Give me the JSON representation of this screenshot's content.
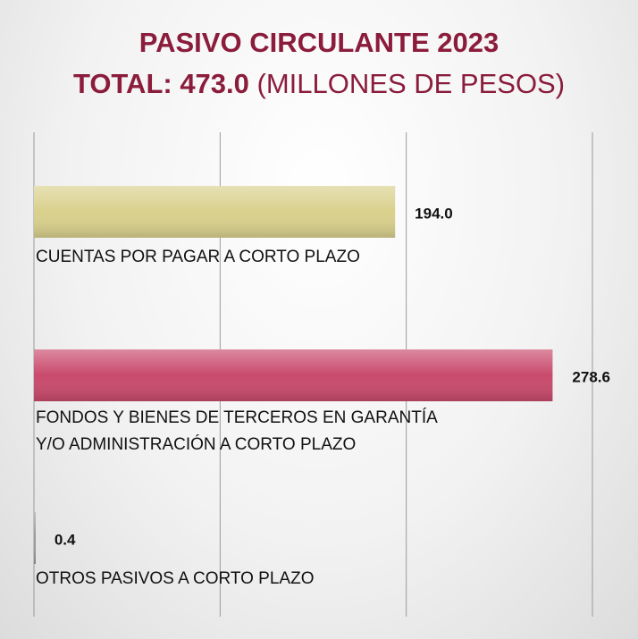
{
  "chart_data": {
    "type": "bar",
    "orientation": "horizontal",
    "title": "PASIVO CIRCULANTE  2023",
    "total_label": "TOTAL:  473.0",
    "unit_label": "(MILLONES DE PESOS)",
    "categories": [
      "CUENTAS  POR PAGAR  A CORTO PLAZO",
      "FONDOS Y BIENES  DE TERCEROS  EN  GARANTÍA\nY/O ADMINISTRACIÓN  A CORTO  PLAZO",
      "OTROS PASIVOS A CORTO PLAZO"
    ],
    "values": [
      194.0,
      278.6,
      0.4
    ],
    "value_labels": [
      "194.0",
      "278.6",
      "0.4"
    ],
    "colors": [
      "#d9d08c",
      "#c94a6c",
      "#9a9a9a"
    ],
    "xlim": [
      0,
      300
    ],
    "xticks": [
      0,
      100,
      200,
      300
    ],
    "grid": true
  }
}
